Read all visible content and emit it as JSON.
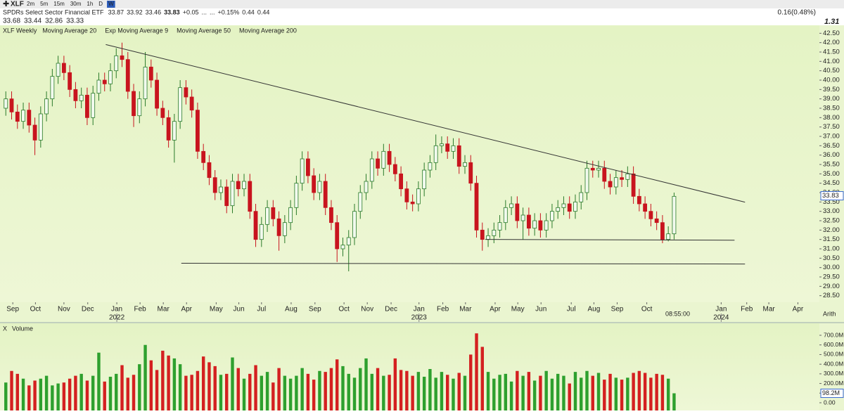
{
  "header": {
    "symbol": "XLF",
    "timeframes": [
      "2m",
      "5m",
      "15m",
      "30m",
      "1h",
      "D",
      "W"
    ],
    "active_timeframe": "W",
    "name": "SPDRs Select Sector Financial ETF",
    "quote": [
      "33.87",
      "33.92",
      "33.46",
      "33.83",
      "+0.05",
      "...",
      "...",
      "+0.15%",
      "0.44",
      "0.44"
    ],
    "ma_values": [
      "33.68",
      "33.44",
      "32.86",
      "33.33"
    ],
    "ma_colors": [
      "#222222",
      "#1a9a1a",
      "#c020c0",
      "#2040c0"
    ],
    "change": "0.16(0.48%)",
    "extra": "1.31"
  },
  "chart_data": [
    {
      "type": "candlestick",
      "title": "XLF Weekly",
      "indicators": [
        {
          "name": "Moving Average 20",
          "color": "#c020c0"
        },
        {
          "name": "Exp Moving Average 9",
          "color": "#2040c0"
        },
        {
          "name": "Moving Average 50",
          "color": "#1a9a1a"
        },
        {
          "name": "Moving Average 200",
          "color": "#b8d8a8"
        }
      ],
      "up_color": "#2a7a2a",
      "down_color": "#c8141e",
      "open": [
        38.5,
        39.0,
        38.3,
        37.8,
        38.4,
        37.6,
        36.8,
        38.2,
        39.0,
        40.2,
        40.9,
        40.4,
        39.5,
        38.9,
        39.2,
        38.0,
        39.3,
        40.0,
        39.8,
        40.5,
        41.3,
        41.1,
        39.4,
        38.1,
        39.0,
        40.7,
        40.0,
        38.5,
        38.0,
        36.8,
        37.8,
        39.6,
        39.1,
        38.4,
        36.2,
        35.6,
        34.8,
        34.0,
        34.3,
        33.3,
        34.6,
        34.2,
        34.6,
        33.0,
        31.5,
        32.3,
        33.2,
        32.6,
        31.7,
        32.4,
        33.2,
        34.5,
        35.8,
        34.9,
        34.0,
        34.6,
        33.2,
        32.4,
        31.0,
        31.2,
        31.6,
        33.0,
        34.0,
        34.6,
        35.8,
        35.3,
        36.2,
        35.5,
        35.0,
        34.2,
        33.5,
        33.4,
        34.2,
        35.2,
        35.6,
        36.5,
        36.6,
        36.2,
        36.5,
        35.4,
        35.6,
        34.5,
        32.0,
        31.5,
        31.7,
        32.0,
        32.4,
        33.2,
        33.4,
        32.5,
        32.8,
        32.1,
        32.5,
        32.0,
        32.5,
        33.0,
        33.2,
        33.4,
        33.0,
        33.5,
        34.0,
        35.3,
        35.2,
        35.3,
        34.6,
        34.3,
        34.8,
        34.7,
        35.0,
        33.8,
        33.4,
        33.0,
        32.6,
        32.4,
        31.5,
        31.8
      ],
      "high": [
        39.4,
        39.4,
        38.7,
        38.8,
        38.8,
        38.0,
        38.6,
        39.4,
        40.6,
        41.3,
        41.3,
        40.8,
        39.9,
        39.6,
        39.6,
        39.7,
        40.4,
        40.4,
        40.9,
        41.7,
        42.0,
        41.5,
        39.8,
        39.4,
        41.5,
        41.1,
        40.4,
        38.9,
        38.4,
        38.2,
        40.0,
        40.0,
        39.5,
        38.8,
        36.6,
        36.0,
        35.2,
        34.7,
        34.7,
        35.0,
        35.0,
        35.0,
        35.0,
        33.4,
        32.7,
        33.6,
        33.6,
        33.0,
        32.8,
        33.6,
        34.9,
        36.2,
        36.2,
        35.3,
        35.0,
        35.0,
        33.6,
        32.8,
        31.6,
        32.0,
        33.4,
        34.4,
        35.0,
        36.2,
        36.2,
        36.6,
        36.6,
        35.9,
        35.4,
        34.6,
        33.9,
        34.6,
        35.6,
        36.0,
        37.1,
        37.0,
        37.0,
        36.9,
        36.9,
        36.0,
        36.0,
        34.9,
        32.4,
        32.1,
        32.4,
        32.8,
        33.6,
        33.8,
        33.8,
        33.2,
        33.2,
        32.9,
        32.9,
        32.9,
        33.4,
        33.6,
        33.8,
        33.8,
        33.9,
        34.4,
        35.7,
        35.7,
        35.7,
        35.7,
        35.0,
        35.2,
        35.2,
        35.4,
        35.4,
        34.2,
        33.8,
        33.4,
        33.0,
        32.8,
        32.2,
        34.0
      ],
      "low": [
        38.1,
        37.9,
        37.4,
        37.4,
        37.2,
        36.0,
        36.4,
        37.8,
        38.6,
        39.8,
        40.0,
        39.1,
        38.5,
        38.5,
        37.6,
        37.6,
        38.9,
        39.4,
        39.4,
        40.1,
        40.7,
        39.0,
        37.5,
        37.7,
        38.6,
        39.6,
        38.1,
        37.6,
        36.4,
        35.6,
        37.4,
        38.7,
        38.0,
        35.8,
        35.2,
        34.4,
        33.6,
        33.6,
        32.9,
        32.9,
        33.8,
        33.8,
        32.6,
        31.1,
        31.1,
        31.9,
        32.2,
        30.9,
        31.3,
        32.0,
        32.8,
        34.1,
        34.5,
        33.6,
        33.6,
        32.8,
        32.0,
        30.3,
        30.6,
        29.8,
        31.2,
        32.6,
        33.6,
        34.2,
        34.9,
        34.9,
        35.1,
        34.6,
        33.8,
        33.1,
        33.0,
        33.0,
        33.8,
        34.8,
        35.2,
        36.1,
        35.8,
        35.8,
        35.0,
        35.0,
        34.1,
        31.6,
        30.9,
        31.1,
        31.3,
        31.6,
        32.0,
        32.8,
        32.1,
        31.5,
        31.7,
        31.7,
        31.6,
        31.6,
        32.1,
        32.6,
        32.8,
        32.6,
        32.6,
        33.1,
        33.6,
        34.8,
        34.8,
        34.2,
        33.9,
        33.9,
        34.3,
        34.3,
        33.4,
        33.0,
        32.6,
        32.2,
        32.0,
        31.3,
        31.4,
        31.5
      ],
      "close": [
        39.0,
        38.3,
        37.8,
        38.4,
        37.6,
        36.8,
        38.2,
        39.0,
        40.2,
        40.9,
        40.4,
        39.5,
        38.9,
        39.2,
        38.0,
        39.3,
        40.0,
        39.8,
        40.5,
        41.3,
        41.1,
        39.4,
        38.1,
        39.0,
        40.7,
        40.0,
        38.5,
        38.0,
        36.8,
        37.8,
        39.6,
        39.1,
        38.4,
        36.2,
        35.6,
        34.8,
        34.0,
        34.3,
        33.3,
        34.6,
        34.2,
        34.6,
        33.0,
        31.5,
        32.3,
        33.2,
        32.6,
        31.7,
        32.4,
        33.2,
        34.5,
        35.8,
        34.9,
        34.0,
        34.6,
        33.2,
        32.4,
        31.0,
        31.2,
        31.6,
        33.0,
        34.0,
        34.6,
        35.8,
        35.3,
        36.2,
        35.5,
        35.0,
        34.2,
        33.5,
        33.4,
        34.2,
        35.2,
        35.6,
        36.5,
        36.6,
        36.2,
        36.5,
        35.4,
        35.6,
        34.5,
        32.0,
        31.5,
        31.7,
        32.0,
        32.4,
        33.2,
        33.4,
        32.5,
        32.8,
        32.1,
        32.5,
        32.0,
        32.5,
        33.0,
        33.2,
        33.4,
        33.0,
        33.5,
        34.0,
        35.3,
        35.2,
        35.3,
        34.6,
        34.3,
        34.8,
        34.7,
        35.0,
        33.8,
        33.4,
        33.0,
        32.6,
        32.4,
        31.5,
        31.8,
        33.8
      ],
      "trendlines": [
        {
          "x": [
            17.2,
            127.2
          ],
          "y": [
            41.9,
            33.49
          ]
        },
        {
          "x": [
            30.2,
            127.2
          ],
          "y": [
            30.23,
            30.19
          ]
        },
        {
          "x": [
            82.5,
            125.4
          ],
          "y": [
            31.5,
            31.46
          ]
        }
      ],
      "xlim": [
        -1,
        140
      ],
      "xticks": [
        {
          "value": 1.2,
          "label": "Sep"
        },
        {
          "value": 5.1,
          "label": "Oct"
        },
        {
          "value": 10.0,
          "label": "Nov"
        },
        {
          "value": 14.1,
          "label": "Dec"
        },
        {
          "value": 19.1,
          "label": "Jan"
        },
        {
          "value": 23.1,
          "label": "Feb"
        },
        {
          "value": 27.1,
          "label": "Mar"
        },
        {
          "value": 31.1,
          "label": "Apr"
        },
        {
          "value": 36.2,
          "label": "May"
        },
        {
          "value": 40.1,
          "label": "Jun"
        },
        {
          "value": 44.0,
          "label": "Jul"
        },
        {
          "value": 49.1,
          "label": "Aug"
        },
        {
          "value": 53.2,
          "label": "Sep"
        },
        {
          "value": 58.2,
          "label": "Oct"
        },
        {
          "value": 62.2,
          "label": "Nov"
        },
        {
          "value": 66.3,
          "label": "Dec"
        },
        {
          "value": 71.1,
          "label": "Jan"
        },
        {
          "value": 75.2,
          "label": "Feb"
        },
        {
          "value": 79.1,
          "label": "Mar"
        },
        {
          "value": 84.2,
          "label": "Apr"
        },
        {
          "value": 88.1,
          "label": "May"
        },
        {
          "value": 92.1,
          "label": "Jun"
        },
        {
          "value": 97.3,
          "label": "Jul"
        },
        {
          "value": 101.2,
          "label": "Aug"
        },
        {
          "value": 105.2,
          "label": "Sep"
        },
        {
          "value": 110.3,
          "label": "Oct"
        },
        {
          "value": 123.1,
          "label": "Jan"
        },
        {
          "value": 127.5,
          "label": "Feb"
        },
        {
          "value": 131.3,
          "label": "Mar"
        },
        {
          "value": 136.3,
          "label": "Apr"
        }
      ],
      "year_labels": [
        {
          "value": 19.1,
          "label": "2022"
        },
        {
          "value": 71.1,
          "label": "2023"
        },
        {
          "value": 123.1,
          "label": "2024"
        }
      ],
      "ylim": [
        28.0,
        43.0
      ],
      "yticks": [
        {
          "value": 28.5,
          "label": "28.50"
        },
        {
          "value": 29,
          "label": "29.00"
        },
        {
          "value": 29.5,
          "label": "29.50"
        },
        {
          "value": 30,
          "label": "30.00"
        },
        {
          "value": 30.5,
          "label": "30.50"
        },
        {
          "value": 31,
          "label": "31.00"
        },
        {
          "value": 31.5,
          "label": "31.50"
        },
        {
          "value": 32,
          "label": "32.00"
        },
        {
          "value": 32.5,
          "label": "32.50"
        },
        {
          "value": 33,
          "label": "33.00"
        },
        {
          "value": 33.5,
          "label": "33.50"
        },
        {
          "value": 34,
          "label": "34.00"
        },
        {
          "value": 34.5,
          "label": "34.50"
        },
        {
          "value": 35,
          "label": "35.00"
        },
        {
          "value": 35.5,
          "label": "35.50"
        },
        {
          "value": 36,
          "label": "36.00"
        },
        {
          "value": 36.5,
          "label": "36.50"
        },
        {
          "value": 37,
          "label": "37.00"
        },
        {
          "value": 37.5,
          "label": "37.50"
        },
        {
          "value": 38,
          "label": "38.00"
        },
        {
          "value": 38.5,
          "label": "38.50"
        },
        {
          "value": 39,
          "label": "39.00"
        },
        {
          "value": 39.5,
          "label": "39.50"
        },
        {
          "value": 40,
          "label": "40.00"
        },
        {
          "value": 40.5,
          "label": "40.50"
        },
        {
          "value": 41,
          "label": "41.00"
        },
        {
          "value": 41.5,
          "label": "41.50"
        },
        {
          "value": 42,
          "label": "42.00"
        },
        {
          "value": 42.5,
          "label": "42.50"
        }
      ],
      "last_price": 33.83,
      "time_label": "08:55:00",
      "scale_label": "Arith"
    },
    {
      "type": "volume",
      "title": "Volume",
      "values": [
        210,
        330,
        300,
        250,
        180,
        230,
        250,
        280,
        180,
        200,
        210,
        250,
        280,
        300,
        230,
        280,
        520,
        220,
        270,
        300,
        390,
        260,
        290,
        400,
        600,
        440,
        340,
        540,
        490,
        460,
        400,
        280,
        290,
        330,
        480,
        420,
        380,
        290,
        300,
        470,
        360,
        250,
        300,
        390,
        280,
        320,
        210,
        360,
        280,
        250,
        280,
        360,
        300,
        240,
        330,
        320,
        360,
        450,
        380,
        300,
        260,
        360,
        460,
        300,
        360,
        280,
        290,
        460,
        340,
        330,
        280,
        320,
        270,
        350,
        260,
        320,
        290,
        250,
        310,
        280,
        500,
        720,
        580,
        320,
        250,
        290,
        300,
        220,
        330,
        280,
        320,
        230,
        280,
        330,
        250,
        300,
        280,
        200,
        320,
        260,
        330,
        280,
        310,
        240,
        300,
        260,
        240,
        260,
        310,
        330,
        310,
        260,
        300,
        290,
        250,
        98.2
      ],
      "last_value_label": "98.2M",
      "ylim": [
        0,
        800
      ],
      "yticks": [
        {
          "value": 0,
          "label": "0.00"
        },
        {
          "value": 100,
          "label": "100.0M"
        },
        {
          "value": 200,
          "label": "200.0M"
        },
        {
          "value": 300,
          "label": "300.0M"
        },
        {
          "value": 400,
          "label": "400.0M"
        },
        {
          "value": 500,
          "label": "500.0M"
        },
        {
          "value": 600,
          "label": "600.0M"
        },
        {
          "value": 700,
          "label": "700.0M"
        }
      ]
    }
  ]
}
